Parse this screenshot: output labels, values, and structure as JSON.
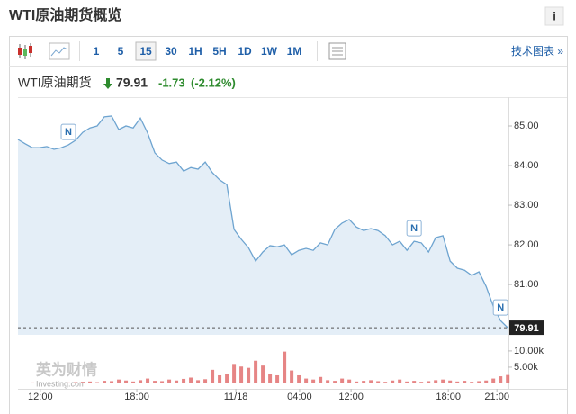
{
  "header": {
    "title": "WTI原油期货概览",
    "info": "i"
  },
  "toolbar": {
    "intervals": [
      "1",
      "5",
      "15",
      "30",
      "1H",
      "5H",
      "1D",
      "1W",
      "1M"
    ],
    "selected": "15",
    "link": "技术图表 »"
  },
  "quote": {
    "name": "WTI原油期货",
    "price": 79.91,
    "change": -1.73,
    "change_pct": "(-2.12%)"
  },
  "watermark": [
    "英为财情",
    "Investing.com"
  ],
  "chart_data": {
    "type": "line",
    "series": [
      {
        "name": "WTI原油期货",
        "color": "#6ea4d0",
        "fill": "#e4eef7",
        "values": [
          84.66,
          84.55,
          84.45,
          84.45,
          84.48,
          84.41,
          84.45,
          84.52,
          84.64,
          84.84,
          84.95,
          85.0,
          85.23,
          85.25,
          84.91,
          85.0,
          84.95,
          85.2,
          84.82,
          84.32,
          84.14,
          84.05,
          84.09,
          83.86,
          83.95,
          83.91,
          84.09,
          83.82,
          83.64,
          83.52,
          82.39,
          82.14,
          81.93,
          81.59,
          81.82,
          81.98,
          81.95,
          82.0,
          81.75,
          81.86,
          81.91,
          81.86,
          82.05,
          82.0,
          82.39,
          82.55,
          82.64,
          82.45,
          82.36,
          82.41,
          82.36,
          82.23,
          82.0,
          82.09,
          81.86,
          82.09,
          82.05,
          81.82,
          82.18,
          82.23,
          81.59,
          81.41,
          81.36,
          81.23,
          81.32,
          80.95,
          80.45,
          80.09,
          79.91
        ]
      }
    ],
    "volume": {
      "color": "#e06666",
      "values": [
        200,
        150,
        300,
        200,
        250,
        150,
        200,
        300,
        400,
        500,
        600,
        400,
        800,
        700,
        1200,
        900,
        600,
        1000,
        1500,
        800,
        700,
        1200,
        900,
        1400,
        1800,
        1000,
        1300,
        4200,
        2500,
        3000,
        6000,
        5200,
        4800,
        7000,
        5500,
        3000,
        2500,
        9800,
        4000,
        2500,
        1500,
        1200,
        2000,
        1000,
        800,
        1500,
        1200,
        600,
        800,
        1000,
        700,
        500,
        900,
        1200,
        600,
        800,
        500,
        700,
        1000,
        1200,
        900,
        600,
        800,
        500,
        700,
        900,
        1500,
        2200,
        2600
      ],
      "ylim": [
        0,
        13300
      ],
      "yticks": [
        {
          "value": 10000,
          "label": "10.00k"
        },
        {
          "value": 5000,
          "label": "5.00k"
        }
      ]
    },
    "xlim": [
      0,
      68.1
    ],
    "xticks": [
      {
        "value": 3.1,
        "label": "12:00"
      },
      {
        "value": 16.5,
        "label": "18:00"
      },
      {
        "value": 30.25,
        "label": "11/18"
      },
      {
        "value": 39.1,
        "label": "04:00"
      },
      {
        "value": 46.25,
        "label": "12:00"
      },
      {
        "value": 59.75,
        "label": "18:00"
      },
      {
        "value": 66.5,
        "label": "21:00"
      }
    ],
    "ylim": [
      79.73,
      85.5
    ],
    "yticks": [
      {
        "value": 85,
        "label": "85.00"
      },
      {
        "value": 84,
        "label": "84.00"
      },
      {
        "value": 83,
        "label": "83.00"
      },
      {
        "value": 82,
        "label": "82.00"
      },
      {
        "value": 81,
        "label": "81.00"
      }
    ],
    "annotations": [
      {
        "text": "N",
        "x": 7
      },
      {
        "text": "N",
        "x": 55
      },
      {
        "text": "N",
        "x": 67
      }
    ]
  }
}
